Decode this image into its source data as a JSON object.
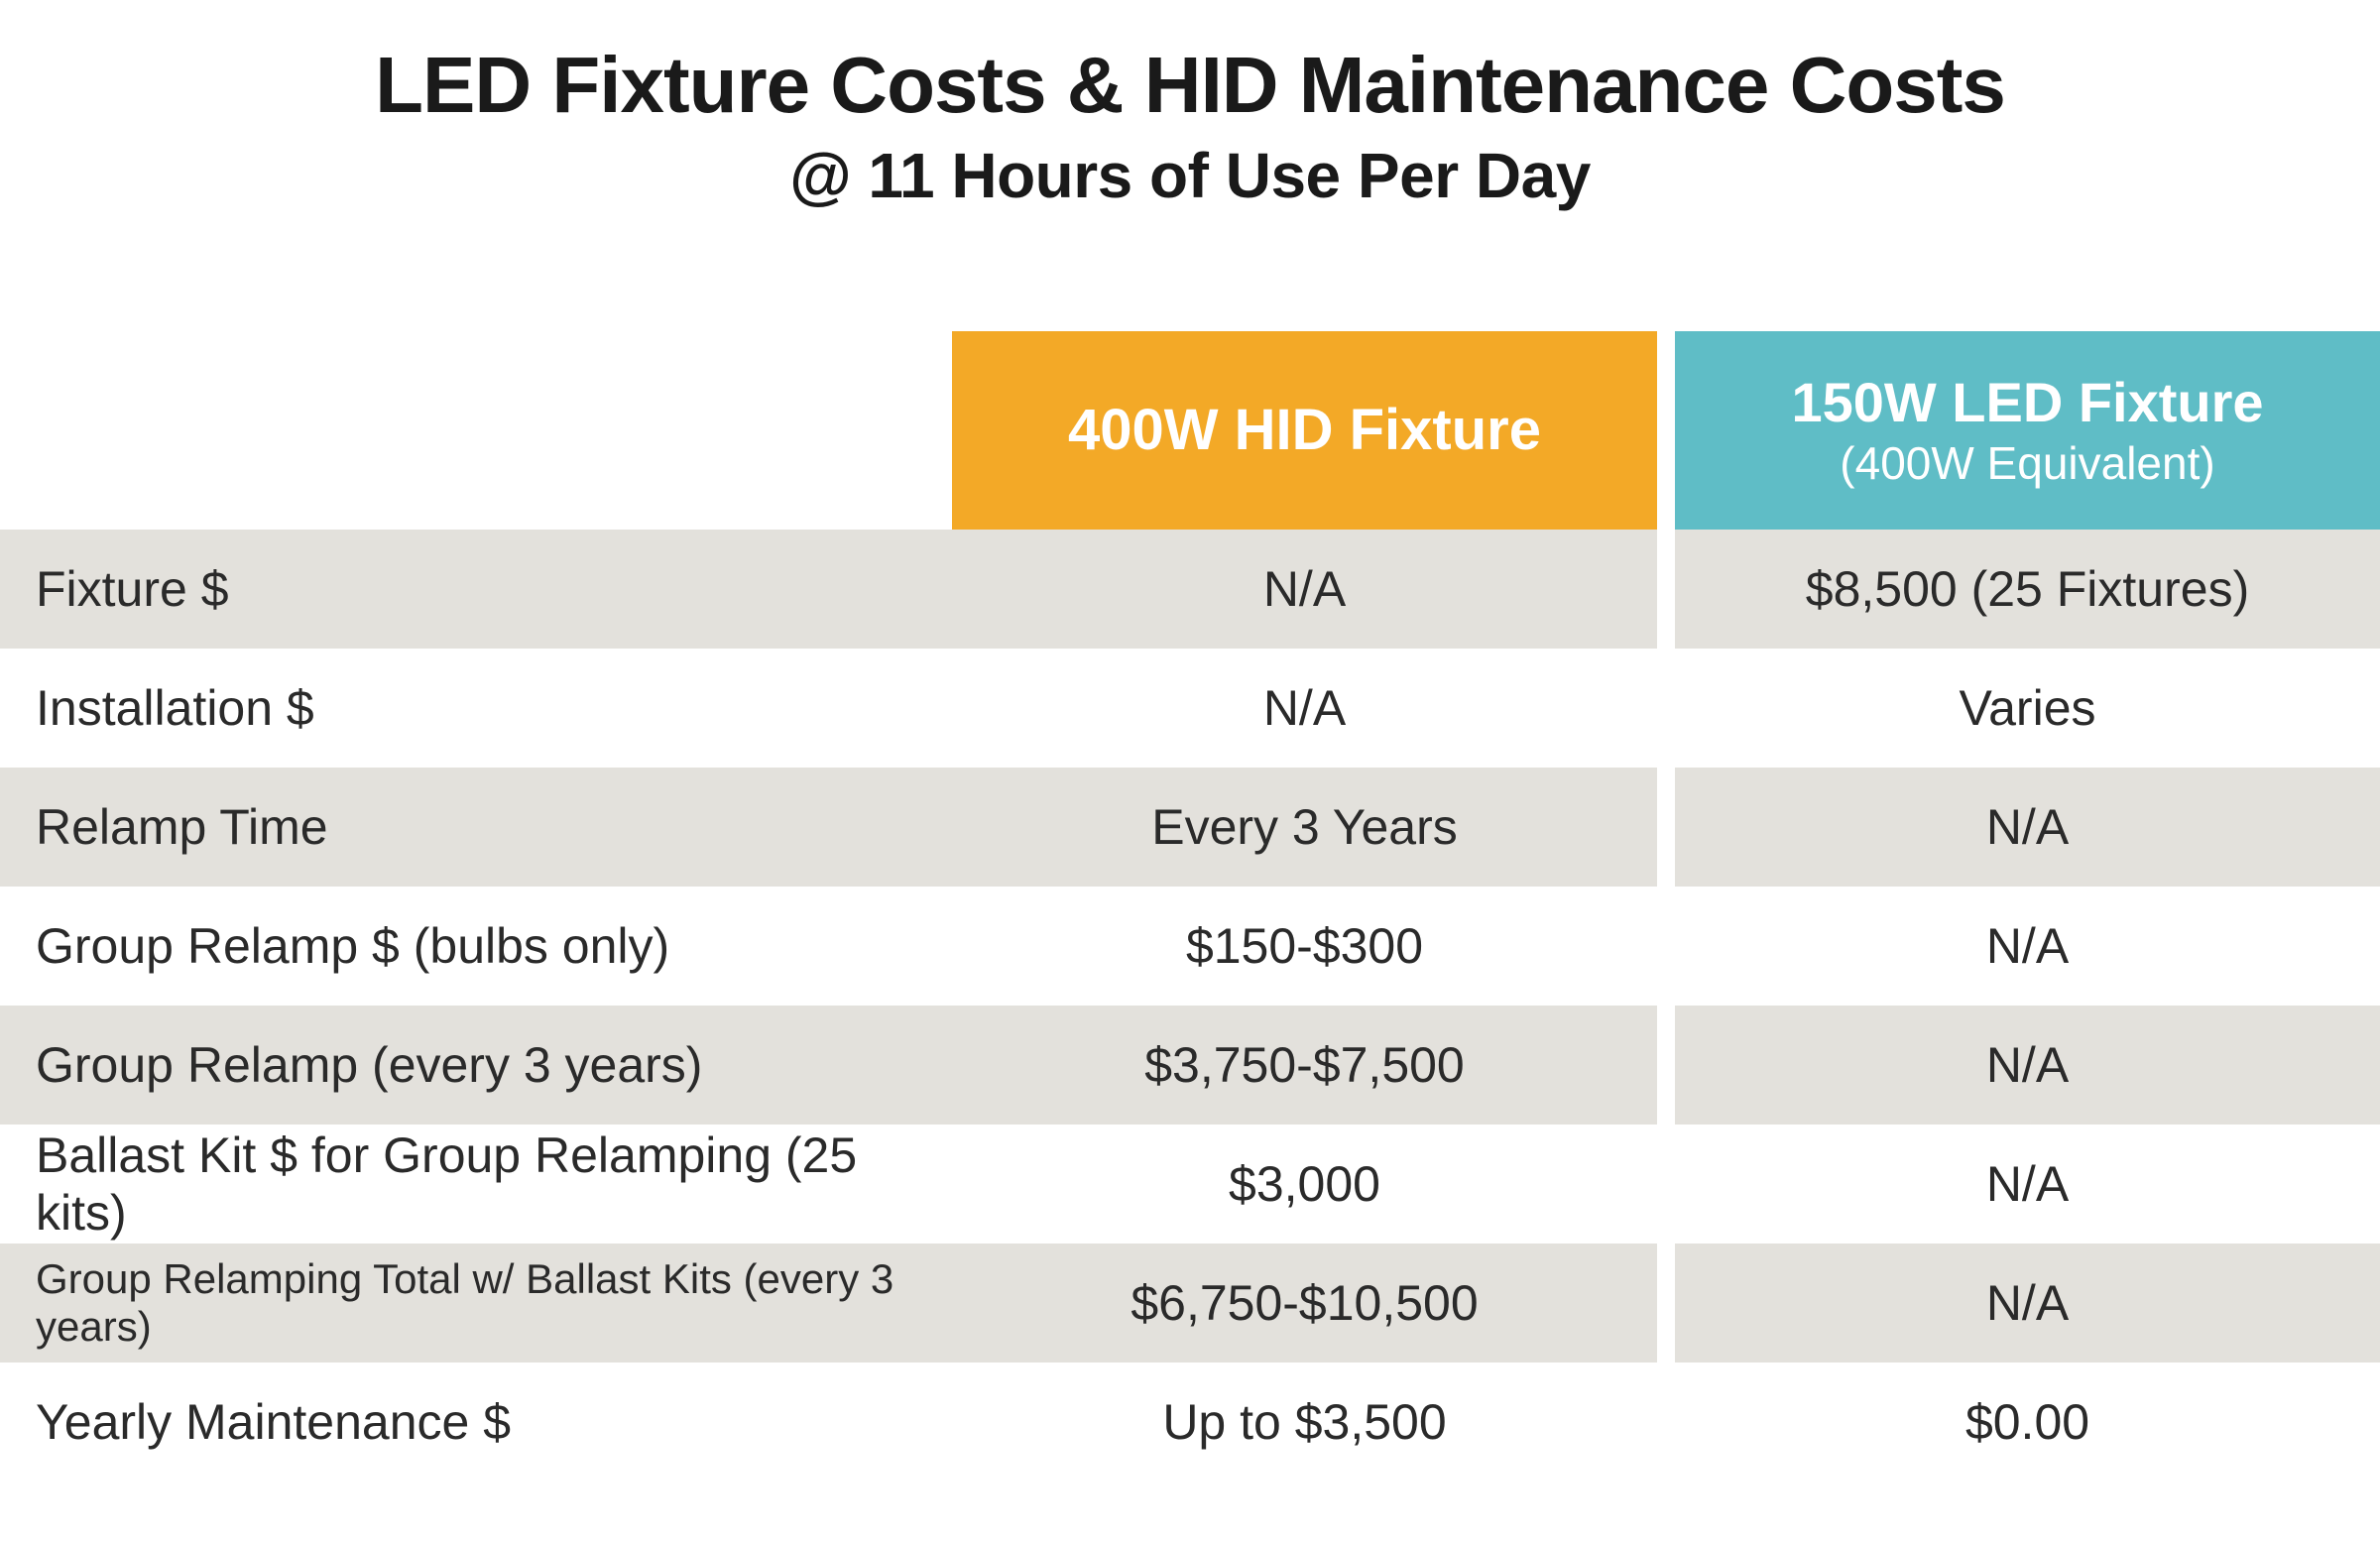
{
  "title": "LED Fixture Costs & HID Maintenance Costs",
  "subtitle": "@ 11 Hours of Use Per Day",
  "colors": {
    "hid_header_bg": "#f3a927",
    "led_header_bg": "#5fbdc6",
    "header_text": "#ffffff",
    "stripe_bg": "#e3e1dc",
    "body_text": "#2a2a2a",
    "page_bg": "#ffffff"
  },
  "columns": {
    "hid": {
      "title": "400W HID Fixture",
      "sub": ""
    },
    "led": {
      "title": "150W LED Fixture",
      "sub": "(400W Equivalent)"
    }
  },
  "rows": [
    {
      "label": "Fixture $",
      "hid": "N/A",
      "led": "$8,500 (25 Fixtures)",
      "small": false
    },
    {
      "label": "Installation $",
      "hid": "N/A",
      "led": "Varies",
      "small": false
    },
    {
      "label": "Relamp Time",
      "hid": "Every 3 Years",
      "led": "N/A",
      "small": false
    },
    {
      "label": "Group Relamp $ (bulbs only)",
      "hid": "$150-$300",
      "led": "N/A",
      "small": false
    },
    {
      "label": "Group Relamp (every 3 years)",
      "hid": "$3,750-$7,500",
      "led": "N/A",
      "small": false
    },
    {
      "label": "Ballast Kit $ for Group Relamping (25 kits)",
      "hid": "$3,000",
      "led": "N/A",
      "small": false
    },
    {
      "label": "Group Relamping Total w/ Ballast Kits (every 3 years)",
      "hid": "$6,750-$10,500",
      "led": "N/A",
      "small": true
    },
    {
      "label": "Yearly Maintenance $",
      "hid": "Up to $3,500",
      "led": "$0.00",
      "small": false
    }
  ]
}
